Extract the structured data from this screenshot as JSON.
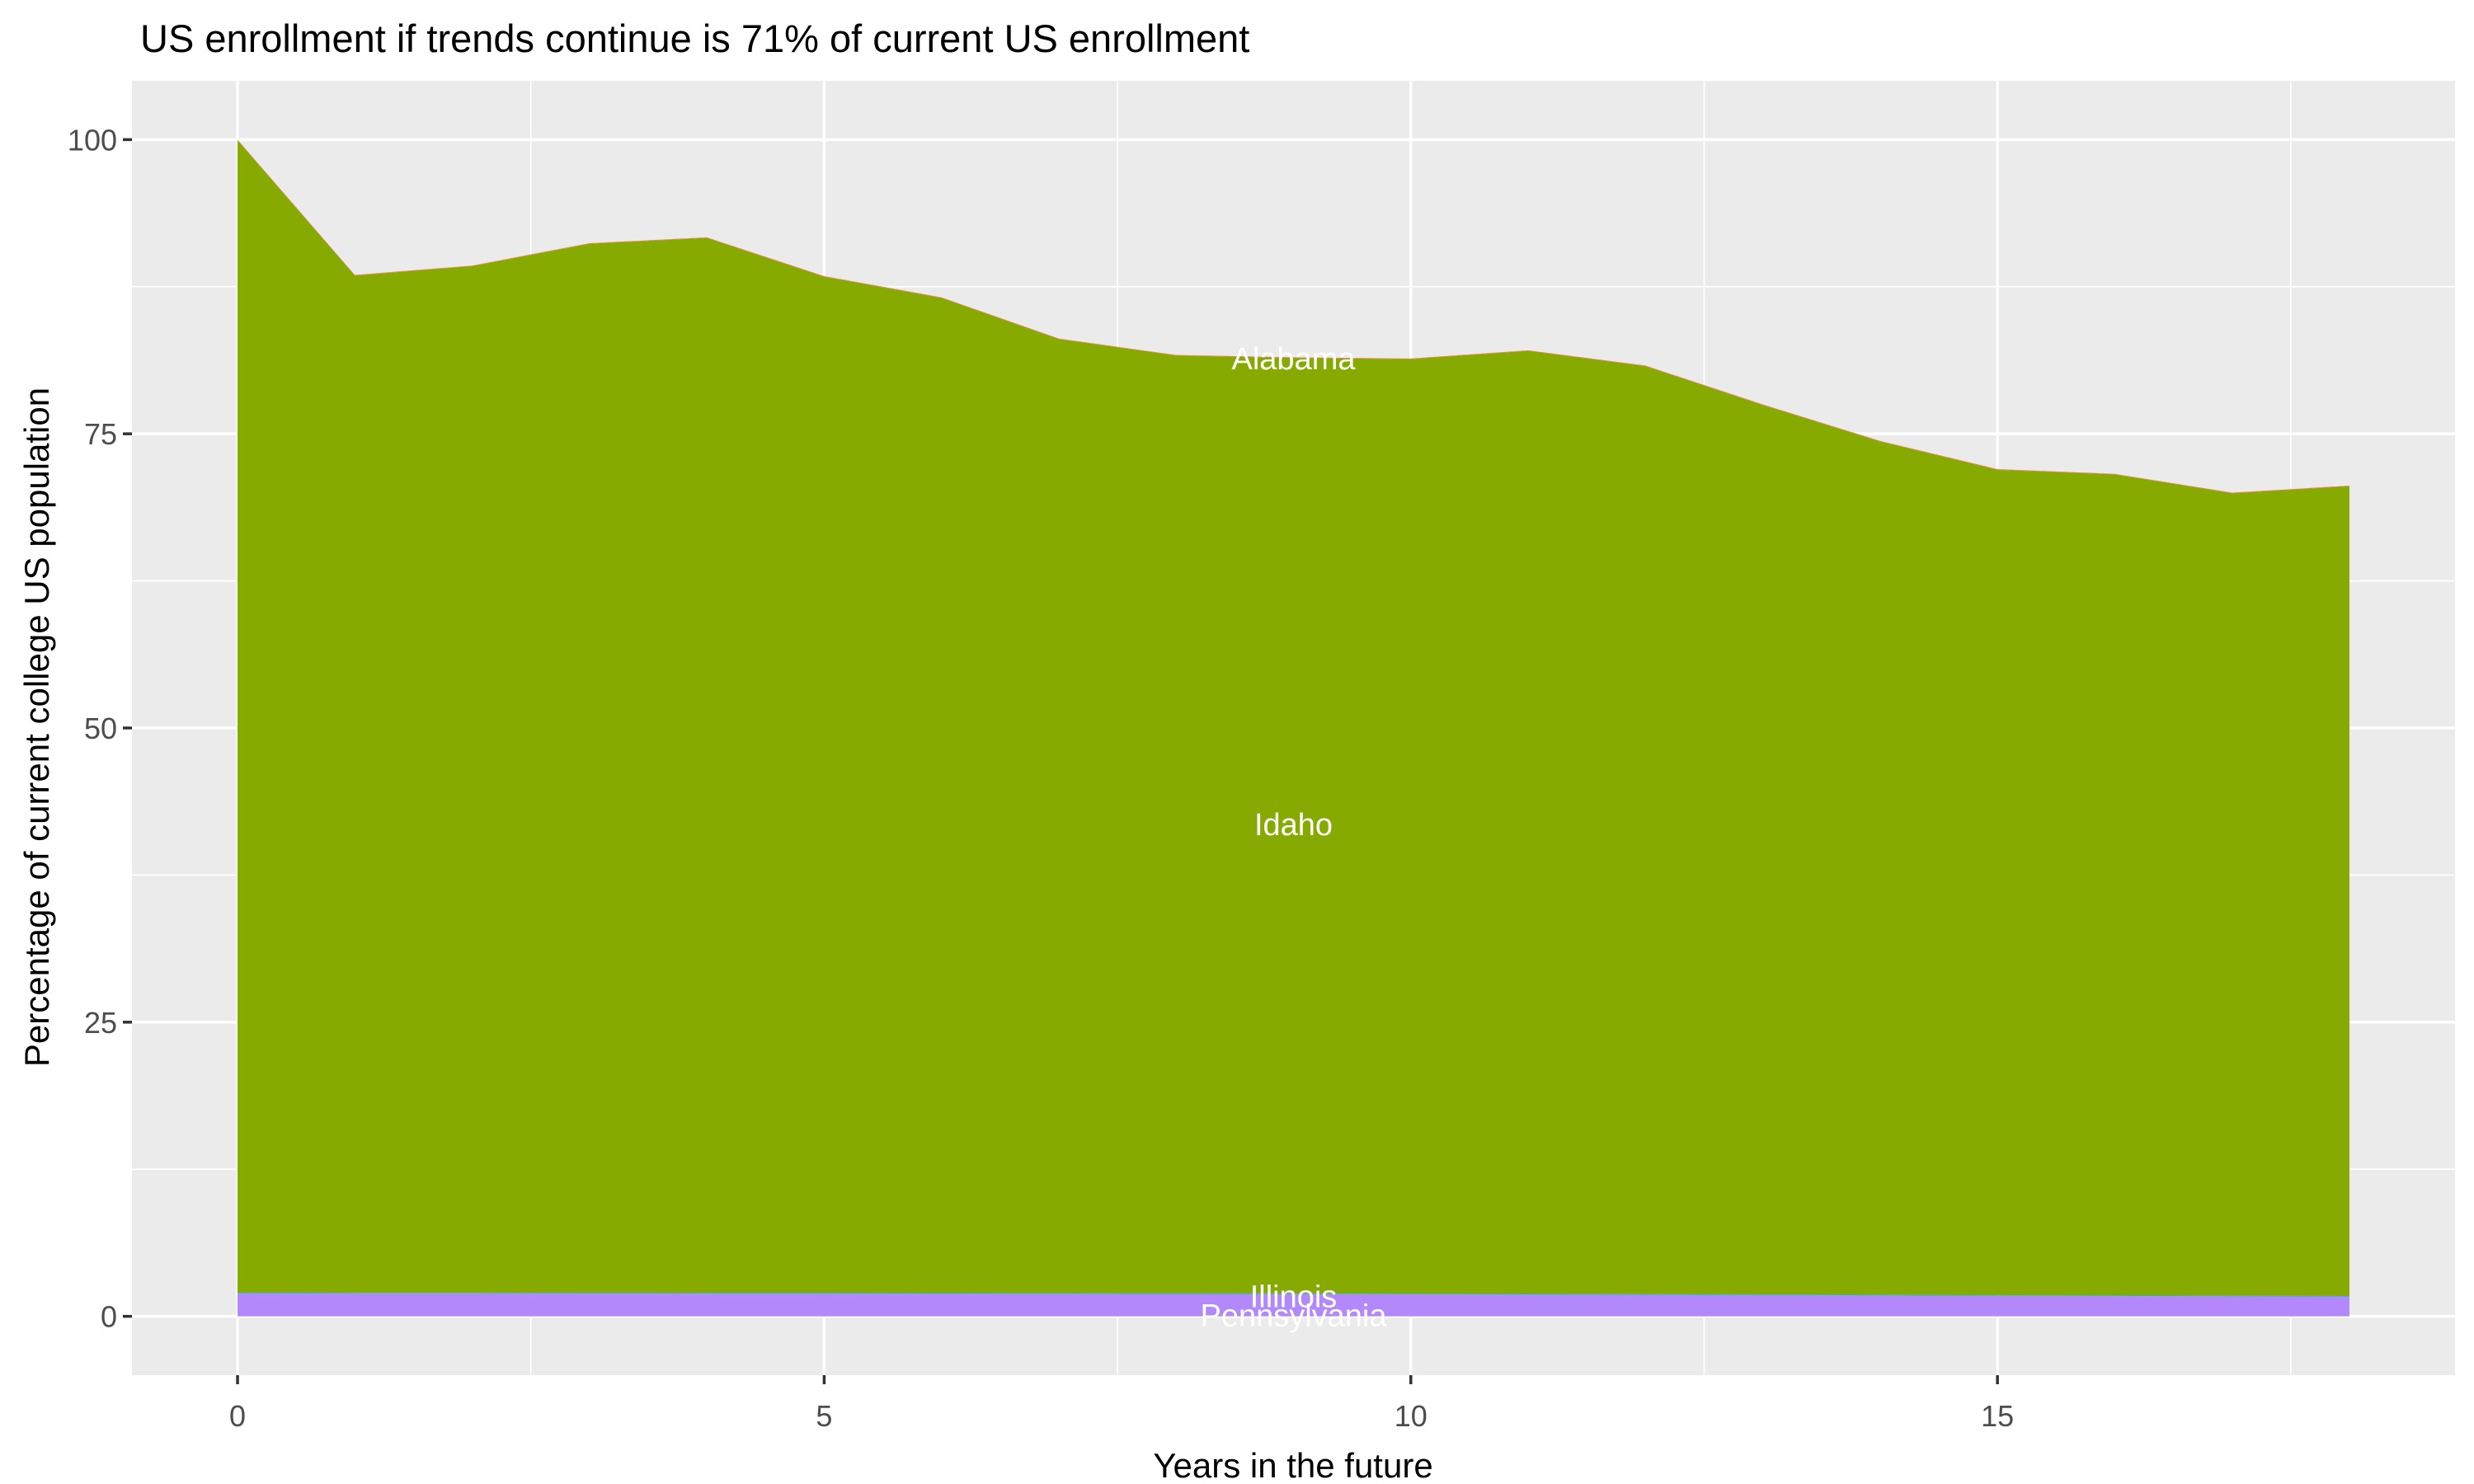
{
  "chart_data": {
    "type": "area",
    "stacked": true,
    "title": "US enrollment if trends continue is 71% of current US enrollment",
    "xlabel": "Years in the future",
    "ylabel": "Percentage of current college US population",
    "x": [
      0,
      1,
      2,
      3,
      4,
      5,
      6,
      7,
      8,
      9,
      10,
      11,
      12,
      13,
      14,
      15,
      16,
      17,
      18
    ],
    "xlim": [
      0,
      18
    ],
    "ylim": [
      0,
      100
    ],
    "x_ticks": [
      0,
      5,
      10,
      15
    ],
    "y_ticks": [
      0,
      25,
      50,
      75,
      100
    ],
    "grid": "major and minor white gridlines on gray panel",
    "legend": "none",
    "series": [
      {
        "name": "Pennsylvania",
        "color": "#B388FB",
        "values": [
          1.96,
          1.95,
          1.95,
          1.94,
          1.93,
          1.93,
          1.92,
          1.91,
          1.9,
          1.89,
          1.87,
          1.85,
          1.83,
          1.8,
          1.77,
          1.74,
          1.72,
          1.7,
          1.68
        ]
      },
      {
        "name": "Illinois",
        "color": "#00BFC4",
        "values": [
          0.05,
          0.05,
          0.05,
          0.05,
          0.05,
          0.05,
          0.05,
          0.05,
          0.05,
          0.05,
          0.05,
          0.05,
          0.05,
          0.05,
          0.05,
          0.05,
          0.05,
          0.05,
          0.05
        ]
      },
      {
        "name": "Idaho",
        "color": "#87AA00",
        "values": [
          97.94,
          86.45,
          87.25,
          89.16,
          89.67,
          86.37,
          84.58,
          81.09,
          79.7,
          79.51,
          79.43,
          80.15,
          78.87,
          75.6,
          72.53,
          70.16,
          69.78,
          68.2,
          68.82
        ]
      },
      {
        "name": "Alabama",
        "color": "#F8766D",
        "values": [
          0.05,
          0.05,
          0.05,
          0.05,
          0.05,
          0.05,
          0.05,
          0.05,
          0.05,
          0.05,
          0.05,
          0.05,
          0.05,
          0.05,
          0.05,
          0.05,
          0.05,
          0.05,
          0.05
        ]
      }
    ],
    "stack_totals": [
      100,
      88.5,
      89.3,
      91.2,
      91.7,
      88.4,
      86.6,
      83.1,
      81.7,
      81.5,
      81.4,
      82.1,
      80.8,
      77.5,
      74.4,
      72.0,
      71.6,
      70.0,
      70.6
    ],
    "area_labels": [
      {
        "text": "Alabama",
        "x": 9,
        "y": 81.4
      },
      {
        "text": "Idaho",
        "x": 9,
        "y": 41.8
      },
      {
        "text": "Illinois",
        "x": 9,
        "y": 1.7
      },
      {
        "text": "Pennsylvania",
        "x": 9,
        "y": 0.07
      }
    ],
    "colors": {
      "panel_bg": "#EBEBEB",
      "gridline": "#FFFFFF",
      "tick_mark": "#333333",
      "tick_label": "#4D4D4D",
      "title_text": "#000000",
      "area_label_text": "#FFFFFF"
    }
  }
}
